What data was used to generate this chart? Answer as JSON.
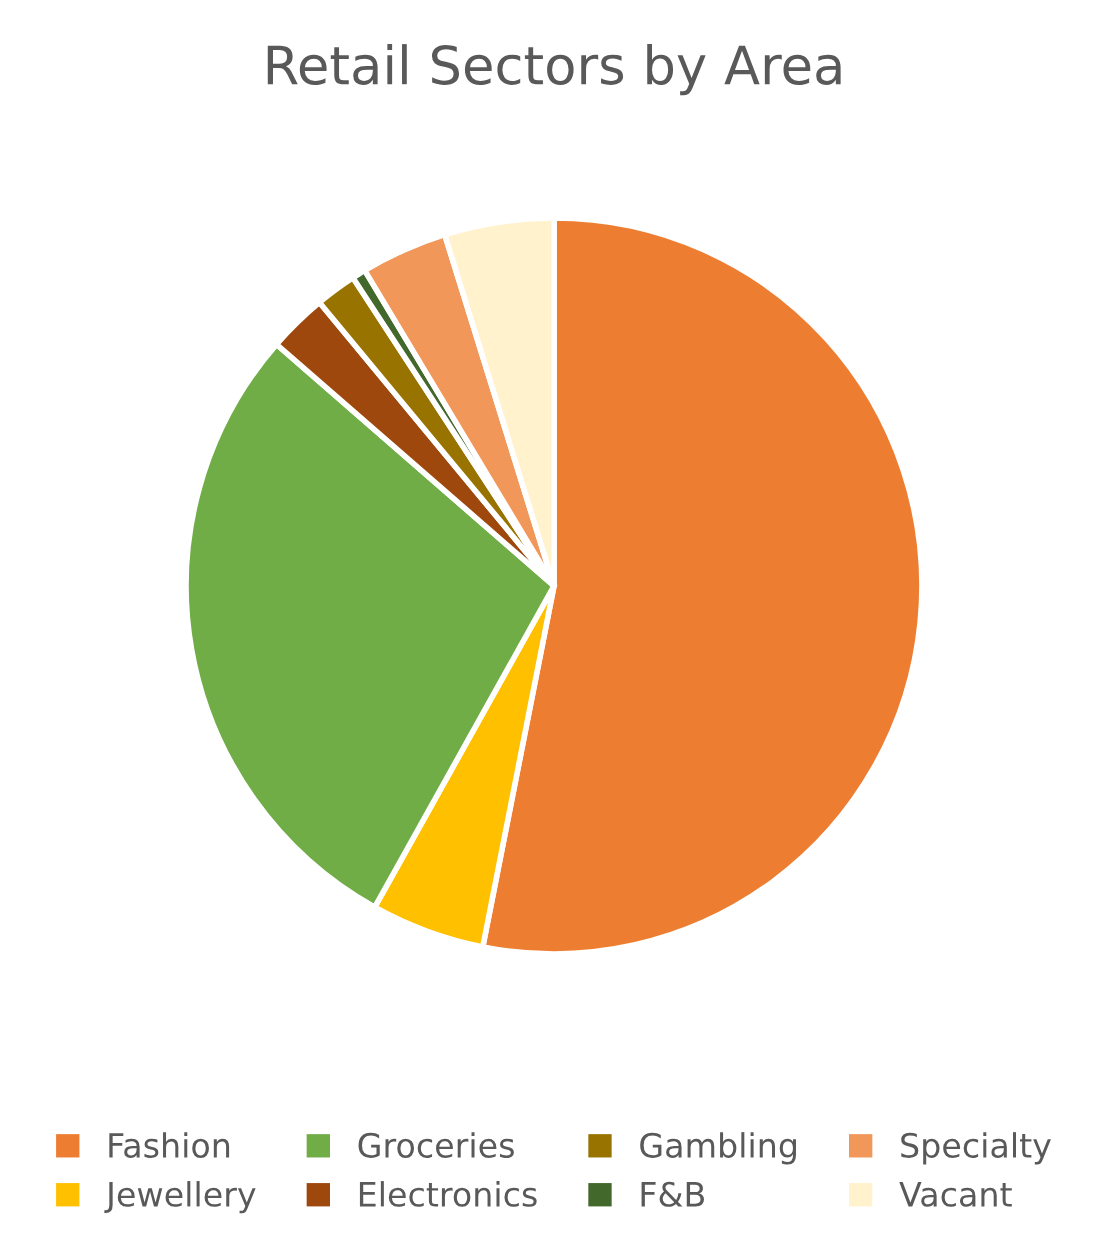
{
  "chart_data": {
    "type": "pie",
    "title": "Retail Sectors by Area",
    "categories": [
      "Fashion",
      "Jewellery",
      "Groceries",
      "Electronics",
      "Gambling",
      "F&B",
      "Specialty",
      "Vacant"
    ],
    "values": [
      53.1,
      5.0,
      28.3,
      2.6,
      1.8,
      0.6,
      3.8,
      4.8
    ],
    "colors": [
      "#ed7d31",
      "#ffc000",
      "#70ad47",
      "#9e480e",
      "#997300",
      "#43682b",
      "#f1975a",
      "#fff2cc"
    ],
    "legend": "bottom"
  }
}
